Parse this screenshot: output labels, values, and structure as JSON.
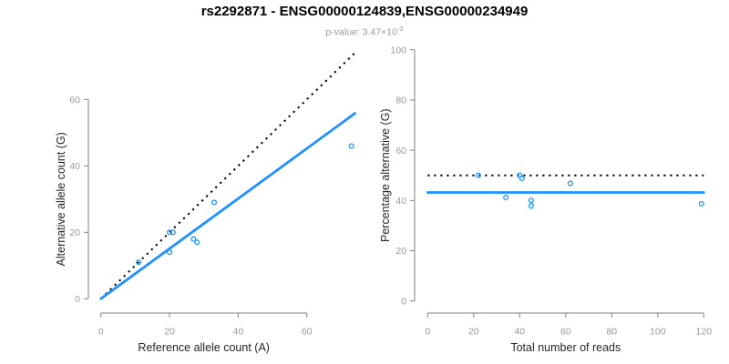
{
  "page": {
    "title": "rs2292871 - ENSG00000124839,ENSG00000234949",
    "subtitle_prefix": "p-value: 3.47×10",
    "subtitle_exponent": "-3"
  },
  "colors": {
    "accent_blue": "#1E90FF",
    "reference_black": "#000000",
    "axis_line": "#808080",
    "tick_text": "#999999",
    "axis_title_text": "#262626",
    "subtitle_text": "#9a9a9a"
  },
  "chart_data": [
    {
      "type": "scatter",
      "title": "",
      "xlabel": "Reference allele count (A)",
      "ylabel": "Alternative allele count (G)",
      "xticks": [
        0,
        20,
        40,
        60
      ],
      "yticks": [
        0,
        20,
        40,
        60
      ],
      "xlim": [
        0,
        74
      ],
      "ylim": [
        0,
        76
      ],
      "grid": false,
      "legend": "none",
      "points": [
        {
          "x": 11,
          "y": 11
        },
        {
          "x": 20,
          "y": 20
        },
        {
          "x": 21,
          "y": 20
        },
        {
          "x": 20,
          "y": 14
        },
        {
          "x": 27,
          "y": 18
        },
        {
          "x": 28,
          "y": 17
        },
        {
          "x": 33,
          "y": 29
        },
        {
          "x": 73,
          "y": 46
        }
      ],
      "reference_line": {
        "name": "identity y=x",
        "style": "dotted",
        "x1": 0,
        "y1": 0,
        "x2": 74,
        "y2": 74
      },
      "fit_line": {
        "name": "regression",
        "style": "solid",
        "x1": 0,
        "y1": 0,
        "x2": 74,
        "y2": 55.8
      }
    },
    {
      "type": "scatter",
      "title": "",
      "xlabel": "Total number of reads",
      "ylabel": "Percentage alternative (G)",
      "xticks": [
        0,
        20,
        40,
        60,
        80,
        100,
        120
      ],
      "yticks": [
        0,
        20,
        40,
        60,
        80,
        100
      ],
      "xlim": [
        0,
        120
      ],
      "ylim": [
        0,
        100
      ],
      "grid": false,
      "legend": "none",
      "points": [
        {
          "x": 22,
          "y": 50
        },
        {
          "x": 40,
          "y": 50
        },
        {
          "x": 41,
          "y": 48.8
        },
        {
          "x": 34,
          "y": 41.2
        },
        {
          "x": 45,
          "y": 40
        },
        {
          "x": 45,
          "y": 37.8
        },
        {
          "x": 62,
          "y": 46.8
        },
        {
          "x": 119,
          "y": 38.7
        }
      ],
      "reference_line": {
        "name": "expected 50%",
        "style": "dotted",
        "x1": 0,
        "y1": 50,
        "x2": 120,
        "y2": 50
      },
      "fit_line": {
        "name": "mean percentage",
        "style": "solid",
        "x1": 0,
        "y1": 43.2,
        "x2": 120,
        "y2": 43.2
      }
    }
  ]
}
